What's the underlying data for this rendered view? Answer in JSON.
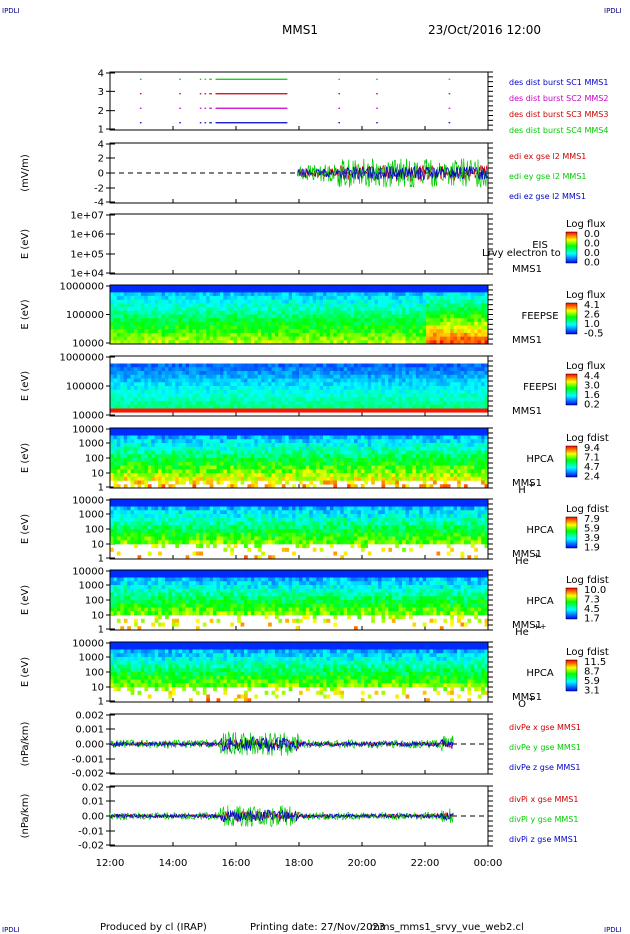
{
  "header": {
    "corner_left_top": "IPDLI",
    "corner_right_top": "IPDLI",
    "corner_left_bottom": "IPDLI",
    "corner_right_bottom": "IPDLI",
    "spacecraft": "MMS1",
    "datetime": "23/Oct/2016 12:00"
  },
  "footer": {
    "produced_by": "Produced by cl (IRAP)",
    "printing_date": "Printing date: 27/Nov/2023",
    "script_name": "mms_mms1_srvy_vue_web2.cl"
  },
  "time_axis": {
    "ticks": [
      "12:00",
      "14:00",
      "16:00",
      "18:00",
      "20:00",
      "22:00",
      "00:00"
    ],
    "range_hours": [
      12,
      24
    ]
  },
  "colors": {
    "blue": "#0000cc",
    "red": "#cc0000",
    "green": "#00cc00",
    "magenta": "#cc00cc",
    "legend_blue": "#0000aa"
  },
  "chart_data": [
    {
      "id": "burst",
      "type": "line",
      "yticks": [
        "1",
        "2",
        "3",
        "4"
      ],
      "ylim": [
        0.5,
        4.5
      ],
      "legend": [
        "des dist burst SC1 MMS1",
        "des dist burst SC2 MMS2",
        "des dist burst SC3 MMS3",
        "des dist burst SC4 MMS4"
      ],
      "legend_colors": [
        "#0000cc",
        "#cc00cc",
        "#cc0000",
        "#00cc00"
      ],
      "series": [
        {
          "y": 1,
          "color": "#0000cc",
          "segments": [
            [
              12.95,
              12.97
            ],
            [
              14.2,
              14.22
            ],
            [
              14.85,
              14.87
            ],
            [
              15.0,
              15.02
            ],
            [
              15.15,
              15.2
            ],
            [
              15.35,
              17.6
            ],
            [
              19.25,
              19.27
            ],
            [
              20.45,
              20.47
            ],
            [
              22.75,
              22.77
            ]
          ]
        },
        {
          "y": 2,
          "color": "#cc00cc",
          "segments": [
            [
              12.95,
              12.97
            ],
            [
              14.2,
              14.22
            ],
            [
              14.85,
              14.87
            ],
            [
              15.0,
              15.02
            ],
            [
              15.15,
              15.2
            ],
            [
              15.35,
              17.6
            ],
            [
              19.25,
              19.27
            ],
            [
              20.45,
              20.47
            ],
            [
              22.75,
              22.77
            ]
          ]
        },
        {
          "y": 3,
          "color": "#cc0000",
          "segments": [
            [
              12.95,
              12.97
            ],
            [
              14.2,
              14.22
            ],
            [
              14.85,
              14.87
            ],
            [
              15.0,
              15.02
            ],
            [
              15.15,
              15.2
            ],
            [
              15.35,
              17.6
            ],
            [
              19.25,
              19.27
            ],
            [
              20.45,
              20.47
            ],
            [
              22.75,
              22.77
            ]
          ]
        },
        {
          "y": 4,
          "color": "#00cc00",
          "segments": [
            [
              12.95,
              12.97
            ],
            [
              14.2,
              14.22
            ],
            [
              14.85,
              14.87
            ],
            [
              15.0,
              15.02
            ],
            [
              15.15,
              15.2
            ],
            [
              15.35,
              17.6
            ],
            [
              19.25,
              19.27
            ],
            [
              20.45,
              20.47
            ],
            [
              22.75,
              22.77
            ]
          ]
        }
      ]
    },
    {
      "id": "edi",
      "type": "line",
      "ylabel": "(mV/m)",
      "yticks": [
        "-4",
        "-2",
        "0",
        "2",
        "4"
      ],
      "ylim": [
        -4.5,
        4.5
      ],
      "legend": [
        "edi ex gse l2 MMS1",
        "edi ey gse l2 MMS1",
        "edi ez gse l2 MMS1"
      ],
      "legend_colors": [
        "#cc0000",
        "#00cc00",
        "#0000cc"
      ],
      "data_span": [
        17.95,
        24.0
      ],
      "series": [
        {
          "name": "edi ex gse l2 MMS1",
          "color": "#cc0000",
          "amplitude": 1.2
        },
        {
          "name": "edi ey gse l2 MMS1",
          "color": "#00cc00",
          "amplitude": 2.2
        },
        {
          "name": "edi ez gse l2 MMS1",
          "color": "#0000cc",
          "amplitude": 1.0
        }
      ]
    },
    {
      "id": "eis",
      "type": "heatmap",
      "ylabel": "E (eV)",
      "yticks": [
        "1e+04",
        "1e+05",
        "1e+06",
        "1e+07"
      ],
      "instrument": [
        "EIS",
        "MMS1"
      ],
      "overlay_text": "Lrvy electron to",
      "colorbar_title": "Log flux",
      "colorbar_ticks": [
        "0.0",
        "0.0",
        "0.0",
        "0.0"
      ]
    },
    {
      "id": "feepse",
      "type": "heatmap",
      "ylabel": "E (eV)",
      "yticks": [
        "10000",
        "100000",
        "1000000"
      ],
      "instrument": [
        "FEEPSE",
        "MMS1"
      ],
      "colorbar_title": "Log flux",
      "colorbar_ticks": [
        "4.1",
        "2.6",
        "1.0",
        "-0.5"
      ]
    },
    {
      "id": "feepsi",
      "type": "heatmap",
      "ylabel": "E (eV)",
      "yticks": [
        "10000",
        "100000",
        "1000000"
      ],
      "instrument": [
        "FEEPSI",
        "MMS1"
      ],
      "colorbar_title": "Log flux",
      "colorbar_ticks": [
        "4.4",
        "3.0",
        "1.6",
        "0.2"
      ]
    },
    {
      "id": "hpca_h",
      "type": "heatmap",
      "ylabel": "E (eV)",
      "yticks": [
        "1",
        "10",
        "100",
        "1000",
        "10000"
      ],
      "instrument": [
        "HPCA",
        "MMS1"
      ],
      "species": "H",
      "charge": "+",
      "colorbar_title": "Log fdist",
      "colorbar_ticks": [
        "9.4",
        "7.1",
        "4.7",
        "2.4"
      ]
    },
    {
      "id": "hpca_he",
      "type": "heatmap",
      "ylabel": "E (eV)",
      "yticks": [
        "1",
        "10",
        "100",
        "1000",
        "10000"
      ],
      "instrument": [
        "HPCA",
        "MMS1"
      ],
      "species": "He",
      "charge": "+",
      "colorbar_title": "Log fdist",
      "colorbar_ticks": [
        "7.9",
        "5.9",
        "3.9",
        "1.9"
      ]
    },
    {
      "id": "hpca_he2",
      "type": "heatmap",
      "ylabel": "E (eV)",
      "yticks": [
        "1",
        "10",
        "100",
        "1000",
        "10000"
      ],
      "instrument": [
        "HPCA",
        "MMS1"
      ],
      "species": "He",
      "charge": "++",
      "colorbar_title": "Log fdist",
      "colorbar_ticks": [
        "10.0",
        "7.3",
        "4.5",
        "1.7"
      ]
    },
    {
      "id": "hpca_o",
      "type": "heatmap",
      "ylabel": "E (eV)",
      "yticks": [
        "1",
        "10",
        "100",
        "1000",
        "10000"
      ],
      "instrument": [
        "HPCA",
        "MMS1"
      ],
      "species": "O",
      "charge": "+",
      "colorbar_title": "Log fdist",
      "colorbar_ticks": [
        "11.5",
        "8.7",
        "5.9",
        "3.1"
      ]
    },
    {
      "id": "divpe",
      "type": "line",
      "ylabel": "(nPa/km)",
      "yticks": [
        "-0.002",
        "-0.001",
        "0.000",
        "0.001",
        "0.002"
      ],
      "ylim": [
        -0.0025,
        0.0025
      ],
      "legend": [
        "divPe x gse MMS1",
        "divPe y gse MMS1",
        "divPe z gse MMS1"
      ],
      "legend_colors": [
        "#cc0000",
        "#00cc00",
        "#0000cc"
      ],
      "data_span": [
        12.0,
        22.9
      ],
      "series": [
        {
          "name": "divPe x gse MMS1",
          "color": "#cc0000",
          "amplitude": 0.0004
        },
        {
          "name": "divPe y gse MMS1",
          "color": "#00cc00",
          "amplitude": 0.001
        },
        {
          "name": "divPe z gse MMS1",
          "color": "#0000cc",
          "amplitude": 0.0006
        }
      ]
    },
    {
      "id": "divpi",
      "type": "line",
      "ylabel": "(nPa/km)",
      "yticks": [
        "-0.02",
        "-0.01",
        "0.00",
        "0.01",
        "0.02"
      ],
      "ylim": [
        -0.025,
        0.025
      ],
      "legend": [
        "divPi x gse MMS1",
        "divPi y gse MMS1",
        "divPi z gse MMS1"
      ],
      "legend_colors": [
        "#cc0000",
        "#00cc00",
        "#0000cc"
      ],
      "data_span": [
        12.0,
        22.9
      ],
      "series": [
        {
          "name": "divPi x gse MMS1",
          "color": "#cc0000",
          "amplitude": 0.004
        },
        {
          "name": "divPi y gse MMS1",
          "color": "#00cc00",
          "amplitude": 0.009
        },
        {
          "name": "divPi z gse MMS1",
          "color": "#0000cc",
          "amplitude": 0.005
        }
      ]
    }
  ]
}
